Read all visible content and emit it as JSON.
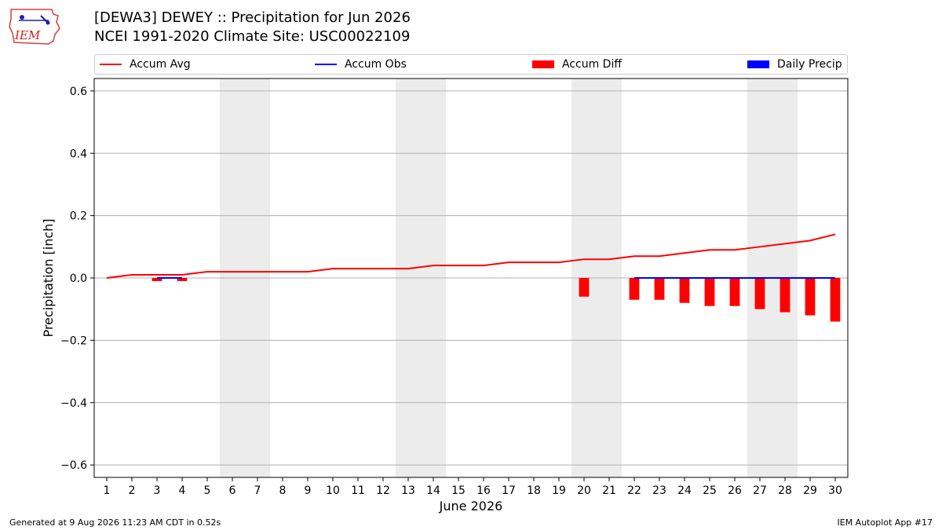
{
  "header": {
    "title_line1": "[DEWA3] DEWEY :: Precipitation for Jun 2026",
    "title_line2": "NCEI 1991-2020 Climate Site: USC00022109",
    "logo_text": "IEM"
  },
  "legend": [
    {
      "label": "Accum Avg",
      "color": "#ff0000",
      "kind": "line"
    },
    {
      "label": "Accum Obs",
      "color": "#0000ff",
      "kind": "line"
    },
    {
      "label": "Accum Diff",
      "color": "#ff0000",
      "kind": "box"
    },
    {
      "label": "Daily Precip",
      "color": "#0000ff",
      "kind": "box"
    }
  ],
  "footer": {
    "left": "Generated at 9 Aug 2026 11:23 AM CDT in 0.52s",
    "right": "IEM Autoplot App #17"
  },
  "chart_data": {
    "type": "bar",
    "xlabel": "June 2026",
    "ylabel": "Precipitation [inch]",
    "ylim": [
      -0.64,
      0.64
    ],
    "yticks": [
      0.6,
      0.4,
      0.2,
      0.0,
      -0.2,
      -0.4,
      -0.6
    ],
    "ytick_labels": [
      "0.6",
      "0.4",
      "0.2",
      "0.0",
      "−0.2",
      "−0.4",
      "−0.6"
    ],
    "xlim": [
      0.5,
      30.5
    ],
    "grid": "horizontal",
    "days": [
      1,
      2,
      3,
      4,
      5,
      6,
      7,
      8,
      9,
      10,
      11,
      12,
      13,
      14,
      15,
      16,
      17,
      18,
      19,
      20,
      21,
      22,
      23,
      24,
      25,
      26,
      27,
      28,
      29,
      30
    ],
    "weekend_shading": [
      [
        6,
        7
      ],
      [
        13,
        14
      ],
      [
        20,
        21
      ],
      [
        27,
        28
      ]
    ],
    "shading_color": "#ececec",
    "series": [
      {
        "name": "Accum Avg",
        "kind": "line",
        "color": "#ff0000",
        "x": [
          1,
          2,
          3,
          4,
          5,
          6,
          7,
          8,
          9,
          10,
          11,
          12,
          13,
          14,
          15,
          16,
          17,
          18,
          19,
          20,
          21,
          22,
          23,
          24,
          25,
          26,
          27,
          28,
          29,
          30
        ],
        "values": [
          0.0,
          0.01,
          0.01,
          0.01,
          0.02,
          0.02,
          0.02,
          0.02,
          0.02,
          0.03,
          0.03,
          0.03,
          0.03,
          0.04,
          0.04,
          0.04,
          0.05,
          0.05,
          0.05,
          0.06,
          0.06,
          0.07,
          0.07,
          0.08,
          0.09,
          0.09,
          0.1,
          0.11,
          0.12,
          0.14
        ]
      },
      {
        "name": "Accum Obs",
        "kind": "line",
        "color": "#0000ff",
        "segments": [
          {
            "x": [
              3,
              4
            ],
            "values": [
              0.0,
              0.0
            ]
          },
          {
            "x": [
              22,
              23,
              24,
              25,
              26,
              27,
              28,
              29,
              30
            ],
            "values": [
              0.0,
              0.0,
              0.0,
              0.0,
              0.0,
              0.0,
              0.0,
              0.0,
              0.0
            ]
          }
        ]
      },
      {
        "name": "Accum Diff",
        "kind": "bar",
        "color": "#ff0000",
        "x": [
          3,
          4,
          20,
          22,
          23,
          24,
          25,
          26,
          27,
          28,
          29,
          30
        ],
        "values": [
          -0.01,
          -0.01,
          -0.06,
          -0.07,
          -0.07,
          -0.08,
          -0.09,
          -0.09,
          -0.1,
          -0.11,
          -0.12,
          -0.14
        ]
      },
      {
        "name": "Daily Precip",
        "kind": "bar",
        "color": "#0000ff",
        "x": [],
        "values": []
      }
    ]
  }
}
